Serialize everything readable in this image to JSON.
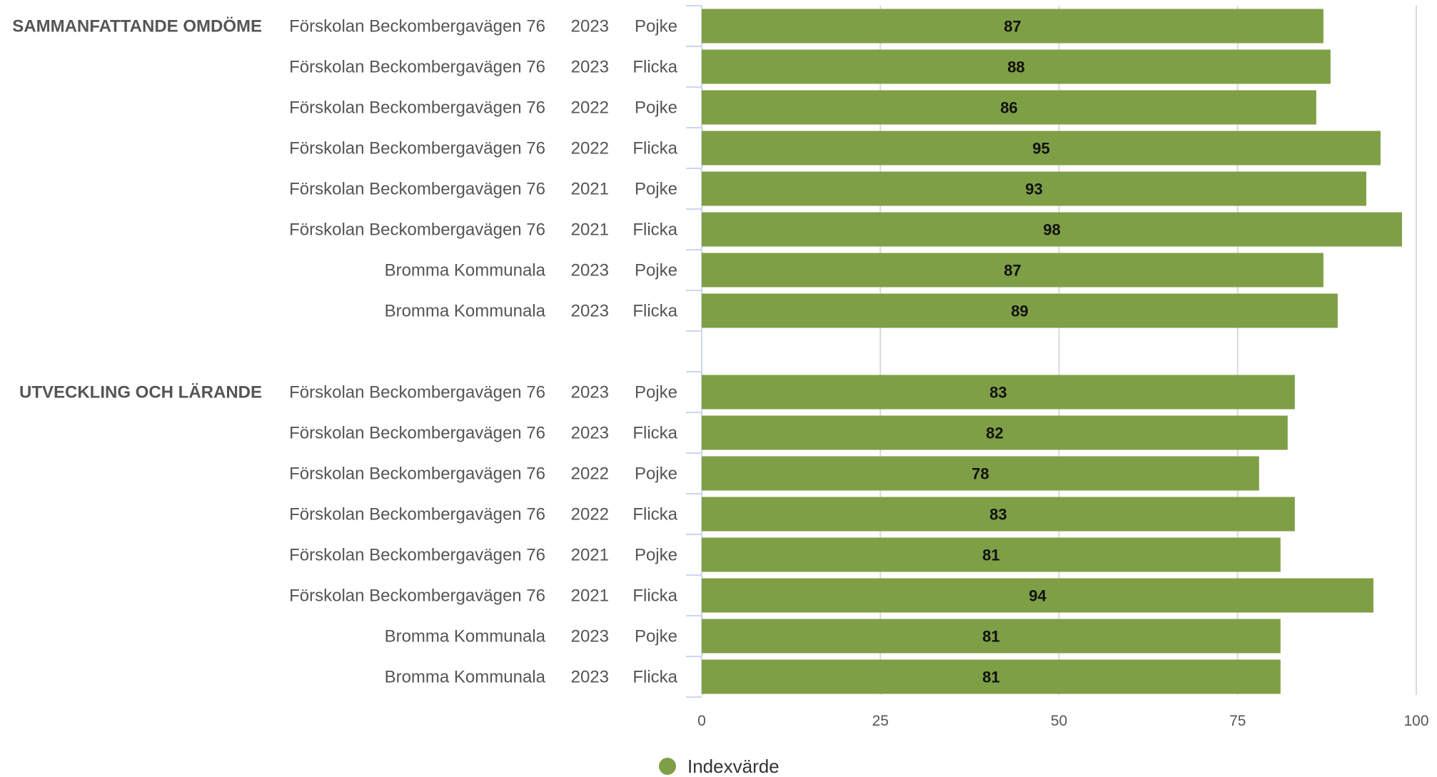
{
  "chart_data": {
    "type": "bar",
    "orientation": "horizontal",
    "xlim": [
      0,
      100
    ],
    "ticks": [
      "0",
      "25",
      "50",
      "75",
      "100"
    ],
    "grid": true,
    "legend_placement": "bottom-center",
    "colors": {
      "bar": "#7f9f46",
      "grid": "#d9d9d9",
      "axis": "#ccd6eb",
      "text": "#555555"
    },
    "series": [
      {
        "name": "Indexvärde",
        "color": "#7f9f46"
      }
    ],
    "groups": [
      {
        "label": "SAMMANFATTANDE OMDÖME",
        "rows": [
          {
            "unit": "Förskolan Beckombergavägen 76",
            "year": "2023",
            "gender": "Pojke",
            "value": 87
          },
          {
            "unit": "Förskolan Beckombergavägen 76",
            "year": "2023",
            "gender": "Flicka",
            "value": 88
          },
          {
            "unit": "Förskolan Beckombergavägen 76",
            "year": "2022",
            "gender": "Pojke",
            "value": 86
          },
          {
            "unit": "Förskolan Beckombergavägen 76",
            "year": "2022",
            "gender": "Flicka",
            "value": 95
          },
          {
            "unit": "Förskolan Beckombergavägen 76",
            "year": "2021",
            "gender": "Pojke",
            "value": 93
          },
          {
            "unit": "Förskolan Beckombergavägen 76",
            "year": "2021",
            "gender": "Flicka",
            "value": 98
          },
          {
            "unit": "Bromma Kommunala",
            "year": "2023",
            "gender": "Pojke",
            "value": 87
          },
          {
            "unit": "Bromma Kommunala",
            "year": "2023",
            "gender": "Flicka",
            "value": 89
          }
        ]
      },
      {
        "label": "UTVECKLING OCH LÄRANDE",
        "rows": [
          {
            "unit": "Förskolan Beckombergavägen 76",
            "year": "2023",
            "gender": "Pojke",
            "value": 83
          },
          {
            "unit": "Förskolan Beckombergavägen 76",
            "year": "2023",
            "gender": "Flicka",
            "value": 82
          },
          {
            "unit": "Förskolan Beckombergavägen 76",
            "year": "2022",
            "gender": "Pojke",
            "value": 78
          },
          {
            "unit": "Förskolan Beckombergavägen 76",
            "year": "2022",
            "gender": "Flicka",
            "value": 83
          },
          {
            "unit": "Förskolan Beckombergavägen 76",
            "year": "2021",
            "gender": "Pojke",
            "value": 81
          },
          {
            "unit": "Förskolan Beckombergavägen 76",
            "year": "2021",
            "gender": "Flicka",
            "value": 94
          },
          {
            "unit": "Bromma Kommunala",
            "year": "2023",
            "gender": "Pojke",
            "value": 81
          },
          {
            "unit": "Bromma Kommunala",
            "year": "2023",
            "gender": "Flicka",
            "value": 81
          }
        ]
      }
    ]
  }
}
